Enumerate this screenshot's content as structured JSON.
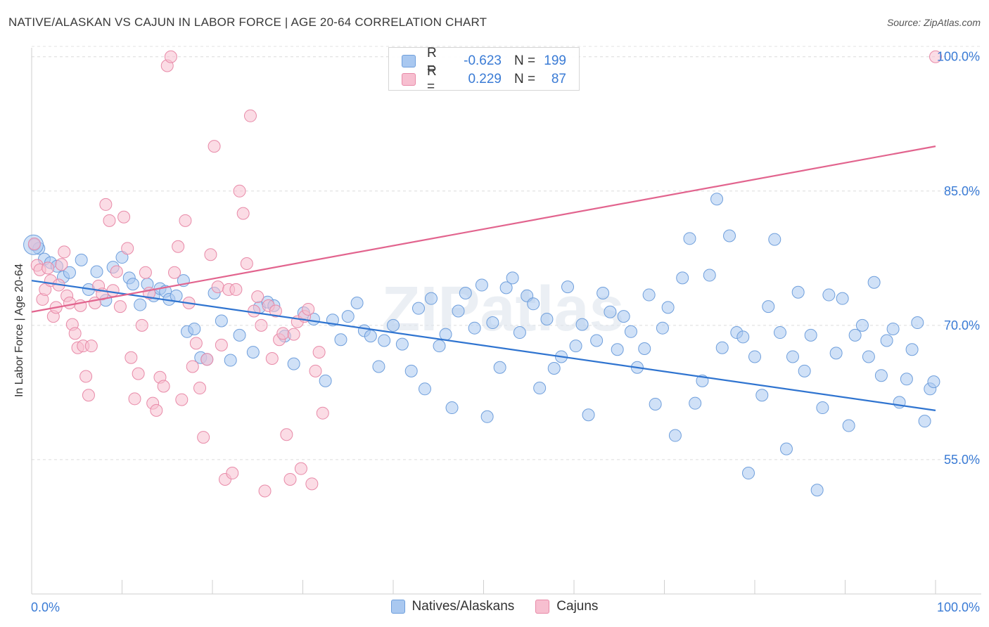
{
  "title": "NATIVE/ALASKAN VS CAJUN IN LABOR FORCE | AGE 20-64 CORRELATION CHART",
  "source": "Source: ZipAtlas.com",
  "watermark": "ZIPatlas",
  "legend": {
    "rows": [
      {
        "r_label": "R =",
        "r_value": "-0.623",
        "n_label": "N =",
        "n_value": "199",
        "color": "#a9c8f0",
        "border": "#6f9fdc"
      },
      {
        "r_label": "R =",
        "r_value": "0.229",
        "n_label": "N =",
        "n_value": "87",
        "color": "#f7bfd0",
        "border": "#e88aa8"
      }
    ]
  },
  "bottom_legend": [
    {
      "label": "Natives/Alaskans",
      "color": "#a9c8f0",
      "border": "#6f9fdc"
    },
    {
      "label": "Cajuns",
      "color": "#f7bfd0",
      "border": "#e88aa8"
    }
  ],
  "chart_data": {
    "type": "scatter",
    "xlabel": "",
    "ylabel": "In Labor Force | Age 20-64",
    "xlim": [
      0,
      100
    ],
    "ylim": [
      40,
      101
    ],
    "x_tick_labels": [
      "0.0%",
      "100.0%"
    ],
    "y_ticks": [
      55,
      70,
      85,
      100
    ],
    "y_tick_labels": [
      "55.0%",
      "70.0%",
      "85.0%",
      "100.0%"
    ],
    "grid": "horizontal dashed",
    "legend_position": "top-center",
    "series": [
      {
        "name": "Natives/Alaskans",
        "color": "#a9c8f0",
        "stroke": "#6f9fdc",
        "line_color": "#2f74d0",
        "trend": [
          [
            0,
            75.0
          ],
          [
            100,
            60.5
          ]
        ],
        "points": [
          [
            0.3,
            79.0
          ],
          [
            0.8,
            78.6
          ],
          [
            1.4,
            77.4
          ],
          [
            2.1,
            77.0
          ],
          [
            2.8,
            76.6
          ],
          [
            3.5,
            75.4
          ],
          [
            4.2,
            75.9
          ],
          [
            5.5,
            77.3
          ],
          [
            6.3,
            74.0
          ],
          [
            7.2,
            76.0
          ],
          [
            8.2,
            72.8
          ],
          [
            9.0,
            76.5
          ],
          [
            10.0,
            77.6
          ],
          [
            10.8,
            75.3
          ],
          [
            11.2,
            74.6
          ],
          [
            12.0,
            72.3
          ],
          [
            12.8,
            74.6
          ],
          [
            13.5,
            73.3
          ],
          [
            14.2,
            74.1
          ],
          [
            14.8,
            73.8
          ],
          [
            15.2,
            72.9
          ],
          [
            16.0,
            73.3
          ],
          [
            16.8,
            75.0
          ],
          [
            17.2,
            69.3
          ],
          [
            18.0,
            69.6
          ],
          [
            18.7,
            66.4
          ],
          [
            19.4,
            66.2
          ],
          [
            20.2,
            73.6
          ],
          [
            21.0,
            70.5
          ],
          [
            22.0,
            66.1
          ],
          [
            23.0,
            68.9
          ],
          [
            24.5,
            67.0
          ],
          [
            25.2,
            72.0
          ],
          [
            26.1,
            72.6
          ],
          [
            26.8,
            72.2
          ],
          [
            28.0,
            68.8
          ],
          [
            29.0,
            65.7
          ],
          [
            30.1,
            71.4
          ],
          [
            31.2,
            70.7
          ],
          [
            32.5,
            63.8
          ],
          [
            33.3,
            70.6
          ],
          [
            34.2,
            68.4
          ],
          [
            35.0,
            71.0
          ],
          [
            36.0,
            72.5
          ],
          [
            36.8,
            69.4
          ],
          [
            37.5,
            68.8
          ],
          [
            38.4,
            65.4
          ],
          [
            39.0,
            68.3
          ],
          [
            40.0,
            70.0
          ],
          [
            41.0,
            67.9
          ],
          [
            42.0,
            64.9
          ],
          [
            42.8,
            71.9
          ],
          [
            43.5,
            62.9
          ],
          [
            44.2,
            73.0
          ],
          [
            45.1,
            67.7
          ],
          [
            45.8,
            69.0
          ],
          [
            46.5,
            60.8
          ],
          [
            47.2,
            71.6
          ],
          [
            48.0,
            73.6
          ],
          [
            49.0,
            69.7
          ],
          [
            49.8,
            74.5
          ],
          [
            50.4,
            59.8
          ],
          [
            51.0,
            70.3
          ],
          [
            51.8,
            65.3
          ],
          [
            52.5,
            74.2
          ],
          [
            53.2,
            75.3
          ],
          [
            54.0,
            69.2
          ],
          [
            54.8,
            73.3
          ],
          [
            55.5,
            72.4
          ],
          [
            56.2,
            63.0
          ],
          [
            57.0,
            70.7
          ],
          [
            57.8,
            65.2
          ],
          [
            58.6,
            66.5
          ],
          [
            59.3,
            74.3
          ],
          [
            60.2,
            67.7
          ],
          [
            60.9,
            70.1
          ],
          [
            61.6,
            60.0
          ],
          [
            62.5,
            68.3
          ],
          [
            63.2,
            73.6
          ],
          [
            64.0,
            71.5
          ],
          [
            64.8,
            67.3
          ],
          [
            65.5,
            71.0
          ],
          [
            66.3,
            69.3
          ],
          [
            67.0,
            65.3
          ],
          [
            67.8,
            67.4
          ],
          [
            68.3,
            73.4
          ],
          [
            69.0,
            61.2
          ],
          [
            69.8,
            69.7
          ],
          [
            70.4,
            72.0
          ],
          [
            71.2,
            57.7
          ],
          [
            72.0,
            75.3
          ],
          [
            72.8,
            79.7
          ],
          [
            73.4,
            61.3
          ],
          [
            74.2,
            63.8
          ],
          [
            75.0,
            75.6
          ],
          [
            75.8,
            84.1
          ],
          [
            76.4,
            67.5
          ],
          [
            77.2,
            80.0
          ],
          [
            78.0,
            69.2
          ],
          [
            78.7,
            68.7
          ],
          [
            79.3,
            53.5
          ],
          [
            80.0,
            66.5
          ],
          [
            80.8,
            62.2
          ],
          [
            81.5,
            72.1
          ],
          [
            82.2,
            79.6
          ],
          [
            82.8,
            69.2
          ],
          [
            83.5,
            56.2
          ],
          [
            84.2,
            66.5
          ],
          [
            84.8,
            73.7
          ],
          [
            85.5,
            64.9
          ],
          [
            86.2,
            68.9
          ],
          [
            86.9,
            51.6
          ],
          [
            87.5,
            60.8
          ],
          [
            88.2,
            73.4
          ],
          [
            89.0,
            66.9
          ],
          [
            89.7,
            73.0
          ],
          [
            90.4,
            58.8
          ],
          [
            91.1,
            68.9
          ],
          [
            91.9,
            70.0
          ],
          [
            92.6,
            66.5
          ],
          [
            93.2,
            74.8
          ],
          [
            94.0,
            64.4
          ],
          [
            94.6,
            68.3
          ],
          [
            95.3,
            69.6
          ],
          [
            96.0,
            61.4
          ],
          [
            96.8,
            64.0
          ],
          [
            97.4,
            67.3
          ],
          [
            98.0,
            70.3
          ],
          [
            98.8,
            59.3
          ],
          [
            99.4,
            62.9
          ],
          [
            99.8,
            63.7
          ]
        ]
      },
      {
        "name": "Cajuns",
        "color": "#f7bfd0",
        "stroke": "#e88aa8",
        "line_color": "#e2648e",
        "trend": [
          [
            0,
            71.5
          ],
          [
            100,
            90.0
          ]
        ],
        "points": [
          [
            0.3,
            79.1
          ],
          [
            0.6,
            76.7
          ],
          [
            0.9,
            76.2
          ],
          [
            1.2,
            72.9
          ],
          [
            1.5,
            74.0
          ],
          [
            1.8,
            76.4
          ],
          [
            2.1,
            75.0
          ],
          [
            2.4,
            71.0
          ],
          [
            2.7,
            72.0
          ],
          [
            3.0,
            74.5
          ],
          [
            3.3,
            76.8
          ],
          [
            3.6,
            78.2
          ],
          [
            3.9,
            73.3
          ],
          [
            4.2,
            72.5
          ],
          [
            4.5,
            70.1
          ],
          [
            4.8,
            69.1
          ],
          [
            5.1,
            67.5
          ],
          [
            5.4,
            72.2
          ],
          [
            5.7,
            67.7
          ],
          [
            6.0,
            64.3
          ],
          [
            6.3,
            62.2
          ],
          [
            6.6,
            67.7
          ],
          [
            7.0,
            72.5
          ],
          [
            7.4,
            74.4
          ],
          [
            7.8,
            73.5
          ],
          [
            8.2,
            83.5
          ],
          [
            8.6,
            81.7
          ],
          [
            9.0,
            73.9
          ],
          [
            9.4,
            76.0
          ],
          [
            9.8,
            72.1
          ],
          [
            10.2,
            82.1
          ],
          [
            10.6,
            78.6
          ],
          [
            11.0,
            66.4
          ],
          [
            11.4,
            61.8
          ],
          [
            11.8,
            64.6
          ],
          [
            12.2,
            70.0
          ],
          [
            12.6,
            75.9
          ],
          [
            13.0,
            73.6
          ],
          [
            13.4,
            61.3
          ],
          [
            13.8,
            60.5
          ],
          [
            14.2,
            64.2
          ],
          [
            14.6,
            63.2
          ],
          [
            15.0,
            99.0
          ],
          [
            15.4,
            100.0
          ],
          [
            15.8,
            75.9
          ],
          [
            16.2,
            78.8
          ],
          [
            16.6,
            61.7
          ],
          [
            17.0,
            81.7
          ],
          [
            17.4,
            72.5
          ],
          [
            17.8,
            65.4
          ],
          [
            18.2,
            68.0
          ],
          [
            18.6,
            63.0
          ],
          [
            19.0,
            57.5
          ],
          [
            19.4,
            66.2
          ],
          [
            19.8,
            77.9
          ],
          [
            20.2,
            90.0
          ],
          [
            20.6,
            74.3
          ],
          [
            21.0,
            67.8
          ],
          [
            21.4,
            52.8
          ],
          [
            21.8,
            74.0
          ],
          [
            22.2,
            53.5
          ],
          [
            22.6,
            74.0
          ],
          [
            23.0,
            85.0
          ],
          [
            23.4,
            82.5
          ],
          [
            23.8,
            76.9
          ],
          [
            24.2,
            93.4
          ],
          [
            24.6,
            71.6
          ],
          [
            25.0,
            73.2
          ],
          [
            25.4,
            70.0
          ],
          [
            25.8,
            51.5
          ],
          [
            26.2,
            72.2
          ],
          [
            26.6,
            66.3
          ],
          [
            27.0,
            71.6
          ],
          [
            27.4,
            68.4
          ],
          [
            27.8,
            69.1
          ],
          [
            28.2,
            57.8
          ],
          [
            28.6,
            52.8
          ],
          [
            29.0,
            69.0
          ],
          [
            29.4,
            70.4
          ],
          [
            29.8,
            54.0
          ],
          [
            30.2,
            71.0
          ],
          [
            30.6,
            71.8
          ],
          [
            31.0,
            52.3
          ],
          [
            31.4,
            64.9
          ],
          [
            31.8,
            67.0
          ],
          [
            32.2,
            60.2
          ],
          [
            100.0,
            100.0
          ]
        ]
      }
    ]
  }
}
